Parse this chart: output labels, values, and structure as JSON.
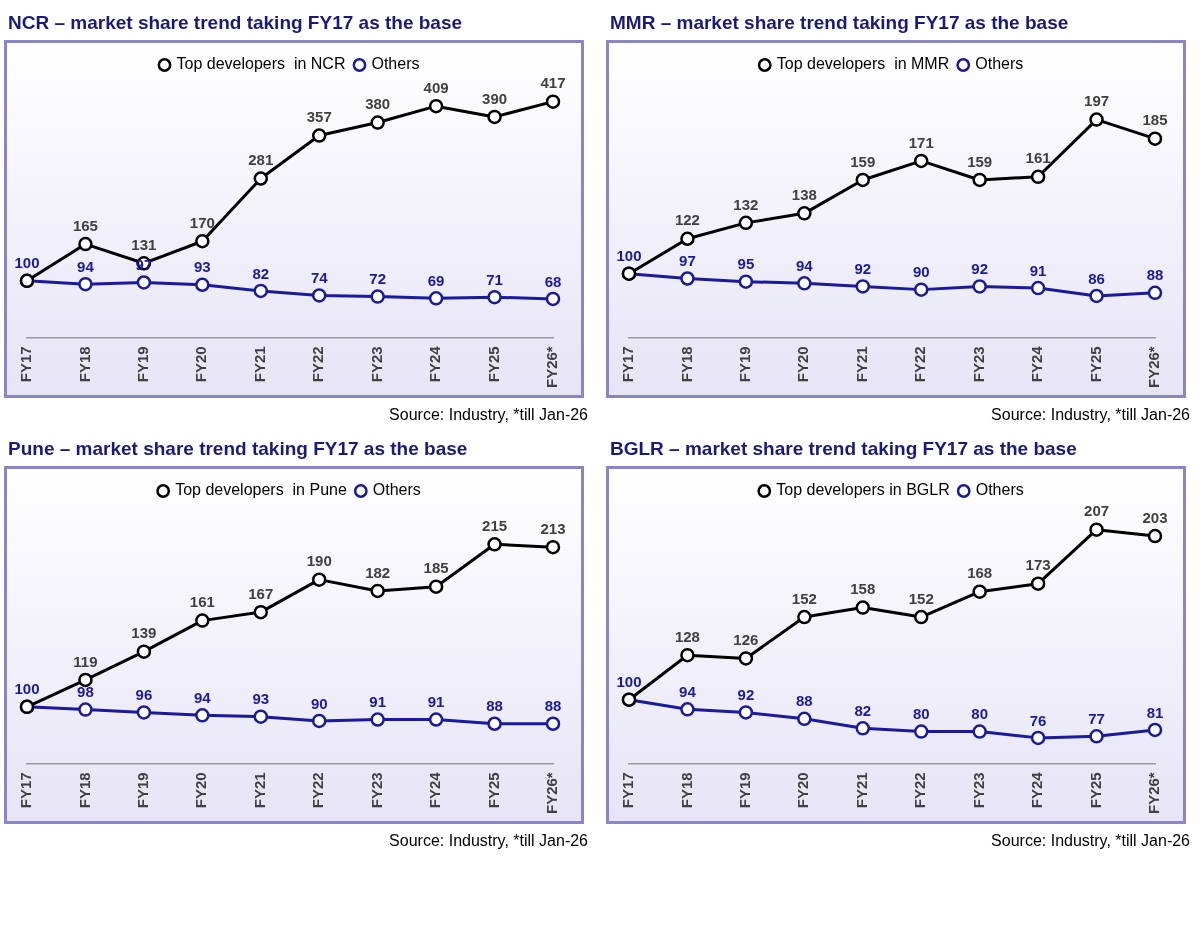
{
  "chart_data": [
    {
      "type": "line",
      "title": "NCR – market share trend taking FY17 as the base",
      "categories": [
        "FY17",
        "FY18",
        "FY19",
        "FY20",
        "FY21",
        "FY22",
        "FY23",
        "FY24",
        "FY25",
        "FY26*"
      ],
      "series": [
        {
          "name": "Top developers  in NCR",
          "color": "#000000",
          "values": [
            100,
            165,
            131,
            170,
            281,
            357,
            380,
            409,
            390,
            417
          ],
          "value_labels": [
            null,
            "165",
            "131",
            "170",
            "281",
            "357",
            "380",
            "409",
            "390",
            "417"
          ]
        },
        {
          "name": "Others",
          "color": "#1a1a9c",
          "values": [
            100,
            94,
            97,
            93,
            82,
            74,
            72,
            69,
            71,
            68
          ],
          "value_labels": [
            "100",
            "94",
            "97",
            "93",
            "82",
            "74",
            "72",
            "69",
            "71",
            "68"
          ]
        }
      ],
      "legend": "top",
      "marker": "circle",
      "line_style": "solid",
      "tick_labels": "x",
      "annotations": [
        "Source: Industry, *till Jan-26"
      ]
    },
    {
      "type": "line",
      "title": "MMR – market share trend taking FY17 as the base",
      "categories": [
        "FY17",
        "FY18",
        "FY19",
        "FY20",
        "FY21",
        "FY22",
        "FY23",
        "FY24",
        "FY25",
        "FY26*"
      ],
      "series": [
        {
          "name": "Top developers  in MMR",
          "color": "#000000",
          "values": [
            100,
            122,
            132,
            138,
            159,
            171,
            159,
            161,
            197,
            185
          ],
          "value_labels": [
            null,
            "122",
            "132",
            "138",
            "159",
            "171",
            "159",
            "161",
            "197",
            "185"
          ]
        },
        {
          "name": "Others",
          "color": "#1a1a9c",
          "values": [
            100,
            97,
            95,
            94,
            92,
            90,
            92,
            91,
            86,
            88
          ],
          "value_labels": [
            "100",
            "97",
            "95",
            "94",
            "92",
            "90",
            "92",
            "91",
            "86",
            "88"
          ]
        }
      ],
      "legend": "top",
      "marker": "circle",
      "line_style": "solid",
      "tick_labels": "x",
      "annotations": [
        "Source: Industry, *till Jan-26"
      ]
    },
    {
      "type": "line",
      "title": "Pune – market share trend taking FY17 as the base",
      "categories": [
        "FY17",
        "FY18",
        "FY19",
        "FY20",
        "FY21",
        "FY22",
        "FY23",
        "FY24",
        "FY25",
        "FY26*"
      ],
      "series": [
        {
          "name": "Top developers  in Pune",
          "color": "#000000",
          "values": [
            100,
            119,
            139,
            161,
            167,
            190,
            182,
            185,
            215,
            213
          ],
          "value_labels": [
            null,
            "119",
            "139",
            "161",
            "167",
            "190",
            "182",
            "185",
            "215",
            "213"
          ]
        },
        {
          "name": "Others",
          "color": "#1a1a9c",
          "values": [
            100,
            98,
            96,
            94,
            93,
            90,
            91,
            91,
            88,
            88
          ],
          "value_labels": [
            "100",
            "98",
            "96",
            "94",
            "93",
            "90",
            "91",
            "91",
            "88",
            "88"
          ]
        }
      ],
      "legend": "top",
      "marker": "circle",
      "line_style": "solid",
      "tick_labels": "x",
      "annotations": [
        "Source: Industry, *till Jan-26"
      ]
    },
    {
      "type": "line",
      "title": "BGLR – market share trend taking FY17 as the base",
      "categories": [
        "FY17",
        "FY18",
        "FY19",
        "FY20",
        "FY21",
        "FY22",
        "FY23",
        "FY24",
        "FY25",
        "FY26*"
      ],
      "series": [
        {
          "name": "Top developers in BGLR",
          "color": "#000000",
          "values": [
            100,
            128,
            126,
            152,
            158,
            152,
            168,
            173,
            207,
            203
          ],
          "value_labels": [
            null,
            "128",
            "126",
            "152",
            "158",
            "152",
            "168",
            "173",
            "207",
            "203"
          ]
        },
        {
          "name": "Others",
          "color": "#1a1a9c",
          "values": [
            100,
            94,
            92,
            88,
            82,
            80,
            80,
            76,
            77,
            81
          ],
          "value_labels": [
            "100",
            "94",
            "92",
            "88",
            "82",
            "80",
            "80",
            "76",
            "77",
            "81"
          ]
        }
      ],
      "legend": "top",
      "marker": "circle",
      "line_style": "solid",
      "tick_labels": "x",
      "annotations": [
        "Source: Industry, *till Jan-26"
      ]
    }
  ]
}
